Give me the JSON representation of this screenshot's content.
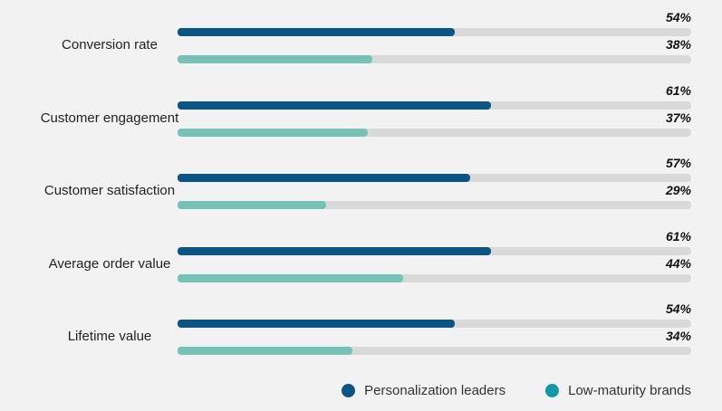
{
  "chart_data": {
    "type": "bar",
    "orientation": "horizontal",
    "categories": [
      "Conversion rate",
      "Customer engagement",
      "Customer satisfaction",
      "Average order value",
      "Lifetime value"
    ],
    "series": [
      {
        "name": "Personalization leaders",
        "values": [
          54,
          61,
          57,
          61,
          54
        ],
        "labels": [
          "54%",
          "61%",
          "57%",
          "61%",
          "54%"
        ],
        "color": "#0b5584"
      },
      {
        "name": "Low-maturity brands",
        "values": [
          38,
          37,
          29,
          44,
          34
        ],
        "labels": [
          "38%",
          "37%",
          "29%",
          "44%",
          "34%"
        ],
        "color": "#76c3b6"
      }
    ],
    "xlim": [
      0,
      100
    ],
    "grid": false,
    "legend_position": "bottom-right",
    "legend_marker_colors": [
      "#0b5584",
      "#1497a8"
    ],
    "track_color": "#d9d9d9",
    "title": "",
    "xlabel": "",
    "ylabel": ""
  }
}
